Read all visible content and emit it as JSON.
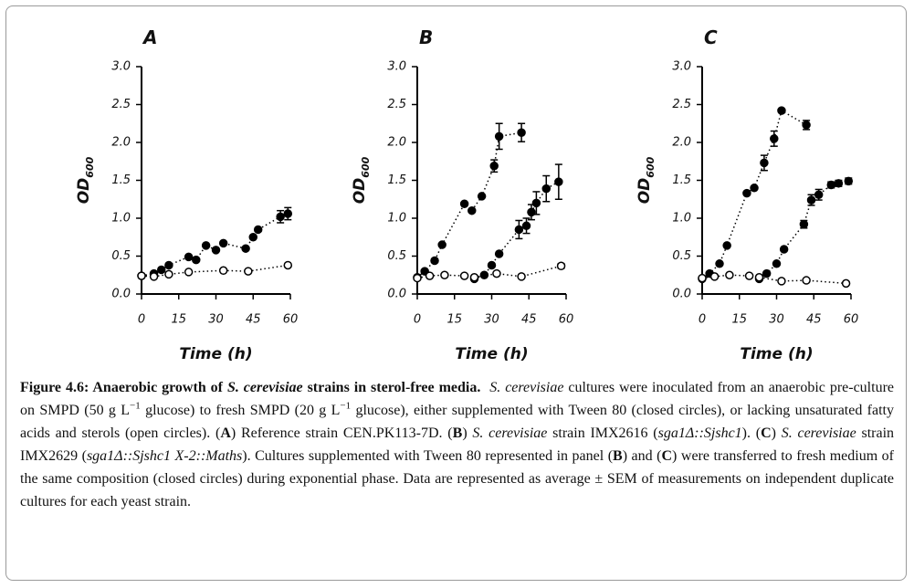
{
  "chart_data": [
    {
      "type": "line",
      "title": "A",
      "xlabel": "Time (h)",
      "ylabel": "OD",
      "ylabel_sub": "600",
      "xlim": [
        0,
        60
      ],
      "xticks": [
        0,
        15,
        30,
        45,
        60
      ],
      "ylim": [
        0,
        3
      ],
      "yticks": [
        {
          "value": 0,
          "label": "0.0"
        },
        {
          "value": 0.5,
          "label": "0.5"
        },
        {
          "value": 1,
          "label": "1.0"
        },
        {
          "value": 1.5,
          "label": "1.5"
        },
        {
          "value": 2,
          "label": "2.0"
        },
        {
          "value": 2.5,
          "label": "2.5"
        },
        {
          "value": 3,
          "label": "3.0"
        }
      ],
      "series": [
        {
          "color": "#000000",
          "marker_fill": "#000000",
          "x": [
            0,
            5,
            8,
            11,
            19,
            22,
            26,
            30,
            33,
            42,
            45,
            47,
            56,
            59
          ],
          "values": [
            0.24,
            0.27,
            0.32,
            0.38,
            0.49,
            0.45,
            0.64,
            0.58,
            0.67,
            0.6,
            0.75,
            0.85,
            1.02,
            1.06
          ],
          "errors": [
            null,
            null,
            null,
            null,
            null,
            null,
            null,
            null,
            null,
            null,
            null,
            null,
            0.08,
            0.08
          ]
        },
        {
          "color": "#000000",
          "marker_fill": "#ffffff",
          "x": [
            0,
            5,
            11,
            19,
            33,
            43,
            59
          ],
          "values": [
            0.24,
            0.23,
            0.26,
            0.29,
            0.31,
            0.3,
            0.38
          ],
          "errors": [
            null,
            null,
            null,
            null,
            null,
            null,
            null
          ]
        }
      ]
    },
    {
      "type": "line",
      "title": "B",
      "xlabel": "Time (h)",
      "ylabel": "OD",
      "ylabel_sub": "600",
      "xlim": [
        0,
        60
      ],
      "xticks": [
        0,
        15,
        30,
        45,
        60
      ],
      "ylim": [
        0,
        3
      ],
      "yticks": [
        {
          "value": 0,
          "label": "0.0"
        },
        {
          "value": 0.5,
          "label": "0.5"
        },
        {
          "value": 1,
          "label": "1.0"
        },
        {
          "value": 1.5,
          "label": "1.5"
        },
        {
          "value": 2,
          "label": "2.0"
        },
        {
          "value": 2.5,
          "label": "2.5"
        },
        {
          "value": 3,
          "label": "3.0"
        }
      ],
      "series": [
        {
          "color": "#000000",
          "marker_fill": "#000000",
          "x": [
            0,
            3,
            7,
            10,
            19,
            22,
            26,
            31,
            33,
            42
          ],
          "values": [
            0.22,
            0.3,
            0.44,
            0.65,
            1.19,
            1.1,
            1.29,
            1.69,
            2.08,
            2.13
          ],
          "errors": [
            null,
            null,
            null,
            null,
            null,
            null,
            null,
            0.08,
            0.17,
            0.12
          ]
        },
        {
          "color": "#000000",
          "marker_fill": "#000000",
          "x": [
            23,
            27,
            30,
            33,
            41,
            44,
            46,
            48,
            52,
            57
          ],
          "values": [
            0.2,
            0.25,
            0.38,
            0.53,
            0.85,
            0.9,
            1.08,
            1.2,
            1.39,
            1.48
          ],
          "errors": [
            null,
            null,
            null,
            null,
            0.12,
            0.1,
            0.1,
            0.15,
            0.17,
            0.23
          ]
        },
        {
          "color": "#000000",
          "marker_fill": "#ffffff",
          "x": [
            0,
            5,
            11,
            19,
            23,
            32,
            42,
            58
          ],
          "values": [
            0.21,
            0.24,
            0.25,
            0.24,
            0.22,
            0.27,
            0.23,
            0.37
          ],
          "errors": [
            null,
            null,
            null,
            null,
            null,
            null,
            null,
            0.03
          ]
        }
      ]
    },
    {
      "type": "line",
      "title": "C",
      "xlabel": "Time (h)",
      "ylabel": "OD",
      "ylabel_sub": "600",
      "xlim": [
        0,
        60
      ],
      "xticks": [
        0,
        15,
        30,
        45,
        60
      ],
      "ylim": [
        0,
        3
      ],
      "yticks": [
        {
          "value": 0,
          "label": "0.0"
        },
        {
          "value": 0.5,
          "label": "0.5"
        },
        {
          "value": 1,
          "label": "1.0"
        },
        {
          "value": 1.5,
          "label": "1.5"
        },
        {
          "value": 2,
          "label": "2.0"
        },
        {
          "value": 2.5,
          "label": "2.5"
        },
        {
          "value": 3,
          "label": "3.0"
        }
      ],
      "series": [
        {
          "color": "#000000",
          "marker_fill": "#000000",
          "x": [
            0,
            3,
            7,
            10,
            18,
            21,
            25,
            29,
            32,
            42
          ],
          "values": [
            0.2,
            0.27,
            0.4,
            0.64,
            1.33,
            1.4,
            1.73,
            2.05,
            2.42,
            2.23
          ],
          "errors": [
            null,
            null,
            null,
            null,
            null,
            null,
            0.1,
            0.1,
            null,
            0.06
          ]
        },
        {
          "color": "#000000",
          "marker_fill": "#000000",
          "x": [
            23,
            26,
            30,
            33,
            41,
            44,
            47,
            52,
            55,
            59
          ],
          "values": [
            0.2,
            0.27,
            0.4,
            0.59,
            0.92,
            1.24,
            1.31,
            1.44,
            1.46,
            1.49
          ],
          "errors": [
            null,
            null,
            null,
            null,
            0.05,
            0.07,
            0.07,
            0.04,
            0.04,
            0.04
          ]
        },
        {
          "color": "#000000",
          "marker_fill": "#ffffff",
          "x": [
            0,
            5,
            11,
            19,
            23,
            32,
            42,
            58
          ],
          "values": [
            0.21,
            0.23,
            0.25,
            0.24,
            0.22,
            0.17,
            0.18,
            0.14
          ],
          "errors": [
            null,
            null,
            null,
            null,
            null,
            null,
            null,
            null
          ]
        }
      ]
    }
  ],
  "caption": [
    "Figure 4.6: Anaerobic growth of ",
    "S. cerevisiae",
    " strains in sterol-free media.",
    "S. cerevisiae",
    " cultures were inoculated from an anaerobic pre-culture on SMPD (50 g L",
    "−1",
    " glucose) to fresh SMPD (20 g L",
    "−1",
    " glucose), either supplemented with Tween 80 (closed circles), or lacking unsaturated fatty acids and sterols (open circles). (",
    "A",
    ") Reference strain CEN.PK113-7D. (",
    "B",
    ") ",
    "S. cerevisiae",
    " strain IMX2616 (",
    "sga1Δ::Sjshc1",
    "). (",
    "C",
    ") ",
    "S. cerevisiae",
    " strain IMX2629 (",
    "sga1Δ::Sjshc1 X-2::Maths",
    ").  Cultures supplemented with Tween 80 represented in panel (",
    "B",
    ") and (",
    "C",
    ") were transferred to fresh medium of the same composition (closed circles) during exponential phase. Data are represented as average ± SEM of measurements on independent duplicate cultures for each yeast strain."
  ]
}
